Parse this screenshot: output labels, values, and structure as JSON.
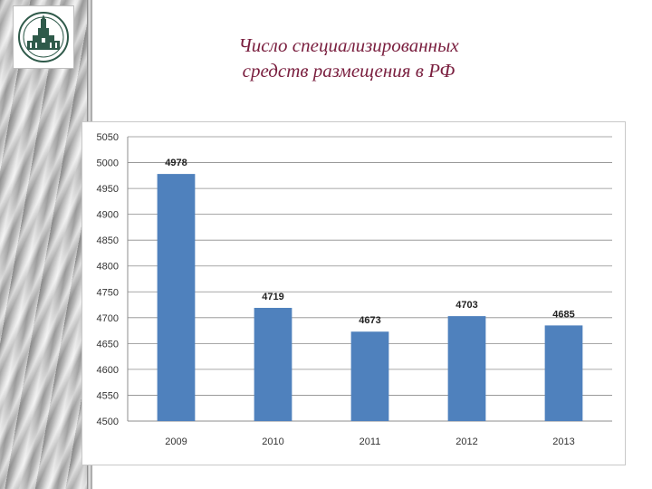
{
  "slide": {
    "title_line1": "Число специализированных",
    "title_line2": "средств размещения в РФ",
    "title_color": "#7a1f3f"
  },
  "logo": {
    "icon": "university-building-emblem-icon"
  },
  "chart_data": {
    "type": "bar",
    "categories": [
      "2009",
      "2010",
      "2011",
      "2012",
      "2013"
    ],
    "values": [
      4978,
      4719,
      4673,
      4703,
      4685
    ],
    "data_labels": [
      "4978",
      "4719",
      "4673",
      "4703",
      "4685"
    ],
    "title": "",
    "xlabel": "",
    "ylabel": "",
    "ylim": [
      4500,
      5050
    ],
    "yticks": [
      "4500",
      "4550",
      "4600",
      "4650",
      "4700",
      "4750",
      "4800",
      "4850",
      "4900",
      "4950",
      "5000",
      "5050"
    ],
    "grid": true,
    "legend": "none",
    "bar_color": "#4f81bd"
  }
}
